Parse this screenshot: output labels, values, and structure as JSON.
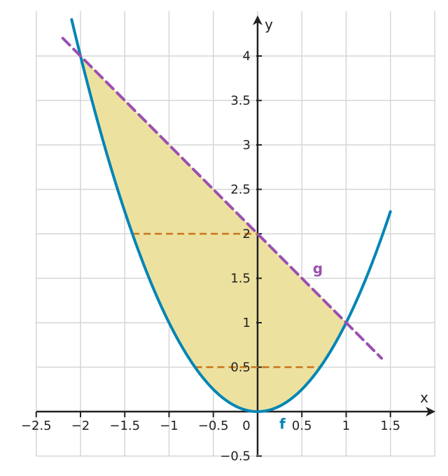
{
  "chart_data": {
    "type": "line",
    "xlabel": "x",
    "ylabel": "y",
    "xlim": [
      -2.5,
      2.0
    ],
    "ylim": [
      -0.5,
      4.5
    ],
    "grid": true,
    "x_ticks": [
      -2.5,
      -2,
      -1.5,
      -1,
      -0.5,
      0,
      0.5,
      1,
      1.5
    ],
    "y_ticks": [
      -0.5,
      0.5,
      1,
      1.5,
      2,
      2.5,
      3,
      3.5,
      4
    ],
    "x_tick_labels": [
      "−2.5",
      "−2",
      "−1.5",
      "−1",
      "−0.5",
      "0",
      "0.5",
      "1",
      "1.5"
    ],
    "y_tick_labels": [
      "−0.5",
      "0.5",
      "1",
      "1.5",
      "2",
      "2.5",
      "3",
      "3.5",
      "4"
    ],
    "series": [
      {
        "name": "f",
        "formula": "x^2",
        "x": [
          -2.1,
          -2.0,
          -1.8,
          -1.6,
          -1.4,
          -1.2,
          -1.0,
          -0.8,
          -0.6,
          -0.4,
          -0.2,
          0.0,
          0.2,
          0.4,
          0.6,
          0.8,
          1.0,
          1.2,
          1.4,
          1.5
        ],
        "y": [
          4.41,
          4.0,
          3.24,
          2.56,
          1.96,
          1.44,
          1.0,
          0.64,
          0.36,
          0.16,
          0.04,
          0.0,
          0.04,
          0.16,
          0.36,
          0.64,
          1.0,
          1.44,
          1.96,
          2.25
        ],
        "color": "#0085b5",
        "style": "solid"
      },
      {
        "name": "g",
        "formula": "2 - x",
        "x": [
          -2.2,
          1.4
        ],
        "y": [
          4.2,
          0.6
        ],
        "color": "#9b4fb0",
        "style": "dashed"
      }
    ],
    "shaded_region": {
      "between": [
        "g",
        "f"
      ],
      "x_range": [
        -2,
        1
      ],
      "color": "#ede19f"
    },
    "horizontal_segments": [
      {
        "y": 2,
        "x_range": [
          -1.414,
          0
        ],
        "color": "#c8741c",
        "style": "dashed"
      },
      {
        "y": 0.5,
        "x_range": [
          -0.707,
          0.707
        ],
        "color": "#c8741c",
        "style": "dashed"
      }
    ],
    "annotations": [
      {
        "text": "f",
        "x": 0.28,
        "y": -0.13,
        "color": "#0085b5"
      },
      {
        "text": "g",
        "x": 0.68,
        "y": 1.62,
        "color": "#9b4fb0"
      }
    ]
  }
}
